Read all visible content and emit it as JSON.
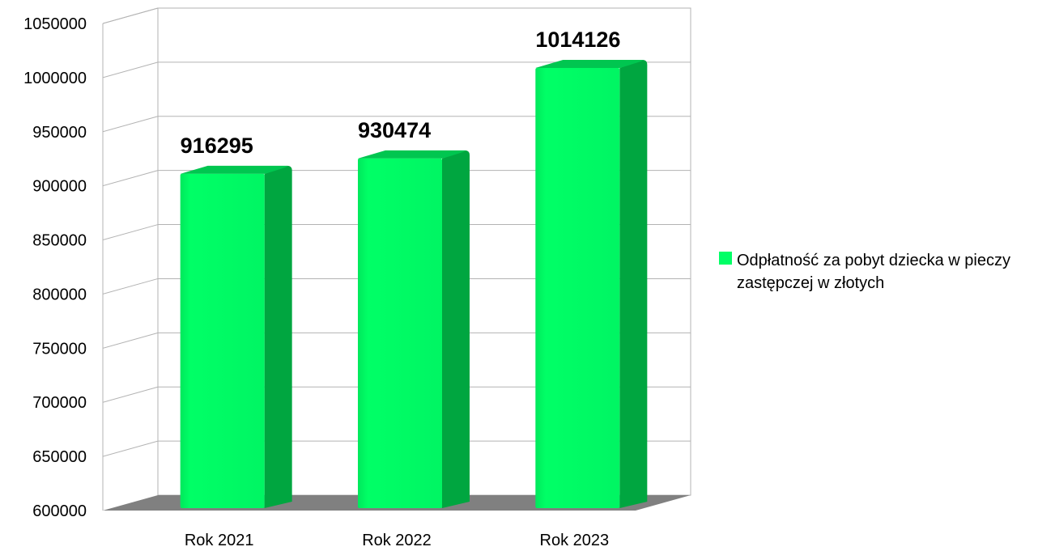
{
  "chart_data": {
    "type": "bar",
    "title": "",
    "xlabel": "",
    "ylabel": "",
    "categories": [
      "Rok 2021",
      "Rok 2022",
      "Rok 2023"
    ],
    "series": [
      {
        "name": "Odpłatność za pobyt dziecka w pieczy zastępczej w złotych",
        "values": [
          916295,
          930474,
          1014126
        ],
        "color": "#00ff66"
      }
    ],
    "data_labels": [
      "916295",
      "930474",
      "1014126"
    ],
    "ylim": [
      600000,
      1050000
    ],
    "yticks": [
      600000,
      650000,
      700000,
      750000,
      800000,
      850000,
      900000,
      950000,
      1000000,
      1050000
    ],
    "ytick_labels": [
      "600000",
      "650000",
      "700000",
      "750000",
      "800000",
      "850000",
      "900000",
      "950000",
      "1000000",
      "1050000"
    ],
    "grid": true,
    "style": "3d",
    "legend_position": "right"
  }
}
